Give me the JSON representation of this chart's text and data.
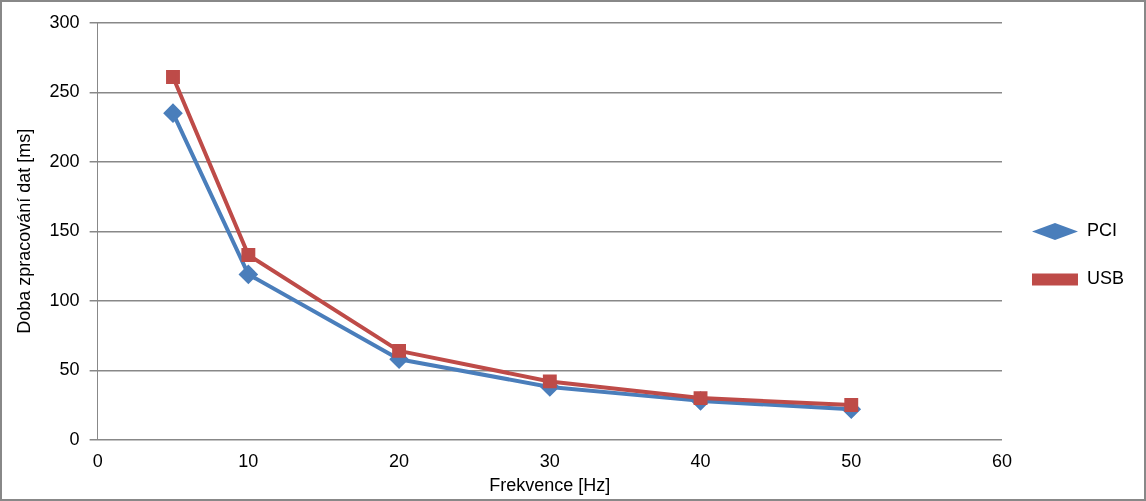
{
  "chart_data": {
    "type": "line",
    "xlabel": "Frekvence [Hz]",
    "ylabel": "Doba zpracování dat [ms]",
    "x": [
      5,
      10,
      20,
      30,
      40,
      50
    ],
    "series": [
      {
        "name": "PCI",
        "color": "#4a7ebb",
        "marker": "diamond",
        "values": [
          235,
          119,
          58,
          38,
          28,
          22
        ]
      },
      {
        "name": "USB",
        "color": "#be4b48",
        "marker": "square",
        "values": [
          261,
          133,
          64,
          42,
          30,
          25
        ]
      }
    ],
    "xlim": [
      0,
      60
    ],
    "xticks": [
      0,
      10,
      20,
      30,
      40,
      50,
      60
    ],
    "ylim": [
      0,
      300
    ],
    "yticks": [
      0,
      50,
      100,
      150,
      200,
      250,
      300
    ],
    "grid": "y",
    "legend": "right",
    "line_style": "solid"
  }
}
